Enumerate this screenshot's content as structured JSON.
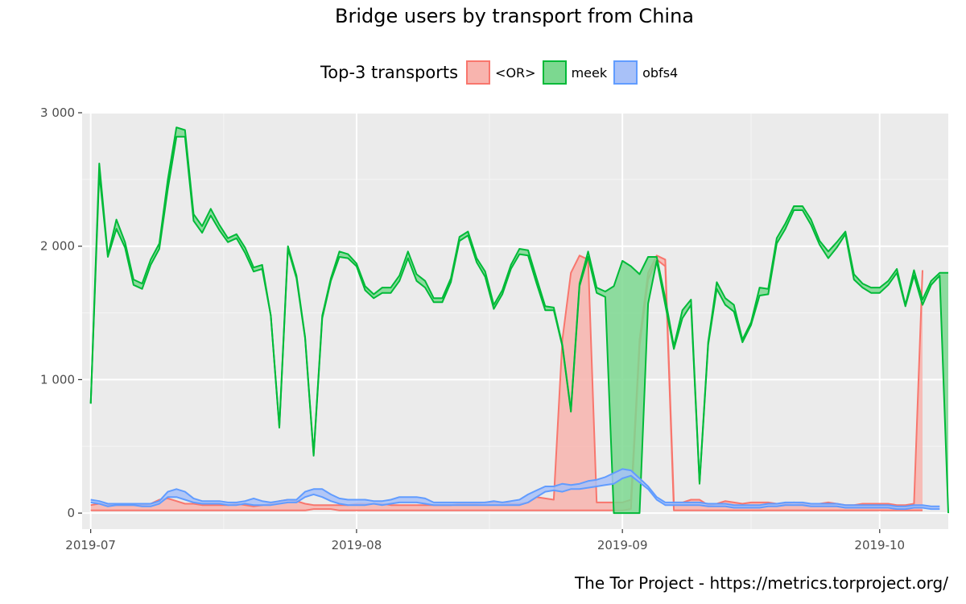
{
  "title": "Bridge users by transport from China",
  "legend": {
    "title": "Top-3 transports"
  },
  "caption": "The Tor Project - https://metrics.torproject.org/",
  "chart_data": {
    "type": "area",
    "title": "Bridge users by transport from China",
    "xlabel": "",
    "ylabel": "",
    "x_start": "2019-07-01",
    "x_end": "2019-10-06",
    "xlim": [
      "2019-06-30",
      "2019-10-09"
    ],
    "ylim": [
      -120,
      3000
    ],
    "y_ticks": [
      0,
      1000,
      2000,
      3000
    ],
    "y_tick_labels": [
      "0",
      "1 000",
      "2 000",
      "3 000"
    ],
    "x_ticks": [
      "2019-07-01",
      "2019-08-01",
      "2019-09-01",
      "2019-10-01"
    ],
    "x_tick_labels": [
      "2019-07",
      "2019-08",
      "2019-09",
      "2019-10"
    ],
    "grid": true,
    "legend_position": "top",
    "series": [
      {
        "name": "<OR>",
        "fill": "#F8B4AE",
        "stroke": "#F8766D",
        "low": [
          20,
          20,
          20,
          20,
          20,
          20,
          20,
          20,
          20,
          20,
          20,
          20,
          20,
          20,
          20,
          20,
          20,
          20,
          20,
          20,
          20,
          20,
          20,
          20,
          20,
          20,
          30,
          30,
          30,
          20,
          20,
          20,
          20,
          20,
          20,
          20,
          20,
          20,
          20,
          20,
          20,
          20,
          20,
          20,
          20,
          20,
          20,
          20,
          20,
          20,
          20,
          20,
          20,
          20,
          20,
          20,
          20,
          20,
          20,
          20,
          20,
          20,
          20,
          30,
          1250,
          1750,
          1900,
          1850,
          20,
          20,
          20,
          20,
          20,
          20,
          20,
          20,
          20,
          20,
          20,
          20,
          20,
          20,
          20,
          20,
          20,
          20,
          20,
          20,
          20,
          20,
          20,
          20,
          20,
          20,
          20,
          20,
          20,
          20
        ],
        "high": [
          60,
          70,
          60,
          60,
          60,
          60,
          60,
          70,
          100,
          110,
          90,
          70,
          70,
          60,
          60,
          60,
          60,
          70,
          60,
          50,
          60,
          70,
          90,
          100,
          90,
          70,
          60,
          60,
          60,
          60,
          60,
          70,
          70,
          70,
          70,
          60,
          60,
          60,
          60,
          60,
          60,
          60,
          60,
          70,
          70,
          70,
          80,
          80,
          80,
          70,
          70,
          80,
          120,
          110,
          100,
          1300,
          1800,
          1930,
          1900,
          80,
          80,
          80,
          80,
          100,
          1300,
          1800,
          1930,
          1900,
          80,
          80,
          100,
          100,
          60,
          70,
          90,
          80,
          70,
          80,
          80,
          80,
          70,
          70,
          80,
          70,
          70,
          70,
          80,
          70,
          60,
          60,
          70,
          70,
          70,
          70,
          60,
          60,
          70,
          1820
        ]
      },
      {
        "name": "meek",
        "fill": "#7CD890",
        "stroke": "#00BA38",
        "low": [
          820,
          2550,
          1920,
          2130,
          1990,
          1710,
          1680,
          1860,
          1980,
          2430,
          2820,
          2820,
          2190,
          2100,
          2230,
          2120,
          2030,
          2060,
          1950,
          1810,
          1830,
          1480,
          640,
          1980,
          1760,
          1310,
          430,
          1460,
          1740,
          1920,
          1910,
          1850,
          1670,
          1610,
          1650,
          1650,
          1740,
          1910,
          1740,
          1690,
          1580,
          1580,
          1730,
          2040,
          2080,
          1880,
          1770,
          1530,
          1640,
          1830,
          1940,
          1930,
          1720,
          1520,
          1520,
          1250,
          760,
          1700,
          1920,
          1650,
          1620,
          0,
          0,
          0,
          0,
          1570,
          1890,
          1560,
          1230,
          1460,
          1560,
          220,
          1260,
          1680,
          1560,
          1510,
          1280,
          1410,
          1630,
          1640,
          2020,
          2130,
          2270,
          2270,
          2160,
          2010,
          1910,
          1990,
          2090,
          1750,
          1690,
          1650,
          1650,
          1710,
          1800,
          1550,
          1780,
          1560,
          1710,
          1780,
          0
        ],
        "high": [
          820,
          2620,
          1930,
          2200,
          2030,
          1750,
          1720,
          1900,
          2020,
          2500,
          2890,
          2870,
          2240,
          2150,
          2280,
          2160,
          2060,
          2090,
          1990,
          1840,
          1860,
          1480,
          650,
          2000,
          1780,
          1320,
          440,
          1480,
          1760,
          1960,
          1940,
          1870,
          1700,
          1640,
          1690,
          1690,
          1780,
          1960,
          1790,
          1740,
          1610,
          1610,
          1760,
          2070,
          2110,
          1910,
          1810,
          1560,
          1670,
          1860,
          1980,
          1970,
          1760,
          1550,
          1540,
          1260,
          770,
          1720,
          1960,
          1690,
          1660,
          1700,
          1890,
          1850,
          1790,
          1920,
          1920,
          1610,
          1250,
          1520,
          1600,
          230,
          1280,
          1730,
          1610,
          1560,
          1300,
          1430,
          1690,
          1680,
          2060,
          2170,
          2300,
          2300,
          2200,
          2040,
          1960,
          2030,
          2110,
          1790,
          1720,
          1690,
          1690,
          1740,
          1830,
          1560,
          1820,
          1600,
          1740,
          1800,
          1800
        ]
      },
      {
        "name": "obfs4",
        "fill": "#A8C1F8",
        "stroke": "#619CFF",
        "low": [
          80,
          70,
          50,
          60,
          60,
          60,
          50,
          50,
          70,
          120,
          120,
          100,
          80,
          70,
          70,
          70,
          60,
          60,
          70,
          60,
          60,
          60,
          70,
          80,
          80,
          120,
          140,
          120,
          90,
          70,
          60,
          60,
          60,
          70,
          60,
          70,
          80,
          80,
          80,
          70,
          60,
          60,
          60,
          60,
          60,
          60,
          60,
          60,
          60,
          60,
          60,
          80,
          120,
          160,
          170,
          160,
          180,
          180,
          190,
          200,
          210,
          220,
          260,
          280,
          230,
          180,
          100,
          60,
          60,
          60,
          60,
          60,
          50,
          50,
          50,
          40,
          40,
          40,
          40,
          50,
          50,
          60,
          60,
          60,
          50,
          50,
          50,
          50,
          40,
          40,
          40,
          40,
          40,
          40,
          30,
          30,
          40,
          40,
          30,
          30
        ],
        "high": [
          100,
          90,
          70,
          70,
          70,
          70,
          70,
          70,
          90,
          160,
          180,
          160,
          110,
          90,
          90,
          90,
          80,
          80,
          90,
          110,
          90,
          80,
          90,
          100,
          100,
          160,
          180,
          180,
          140,
          110,
          100,
          100,
          100,
          90,
          90,
          100,
          120,
          120,
          120,
          110,
          80,
          80,
          80,
          80,
          80,
          80,
          80,
          90,
          80,
          90,
          100,
          140,
          170,
          200,
          200,
          220,
          210,
          220,
          240,
          250,
          270,
          300,
          330,
          320,
          260,
          200,
          120,
          80,
          80,
          80,
          80,
          80,
          70,
          70,
          70,
          60,
          60,
          60,
          60,
          70,
          70,
          80,
          80,
          80,
          70,
          70,
          70,
          70,
          60,
          60,
          60,
          60,
          60,
          60,
          50,
          50,
          60,
          60,
          50,
          50
        ]
      }
    ]
  }
}
